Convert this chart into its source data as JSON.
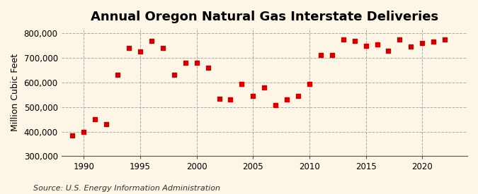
{
  "title": "Annual Oregon Natural Gas Interstate Deliveries",
  "ylabel": "Million Cubic Feet",
  "source": "Source: U.S. Energy Information Administration",
  "background_color": "#fdf5e6",
  "marker_color": "#cc0000",
  "grid_color": "#aaaaaa",
  "years": [
    1989,
    1990,
    1991,
    1992,
    1993,
    1994,
    1995,
    1996,
    1997,
    1998,
    1999,
    2000,
    2001,
    2002,
    2003,
    2004,
    2005,
    2006,
    2007,
    2008,
    2009,
    2010,
    2011,
    2012,
    2013,
    2014,
    2015,
    2016,
    2017,
    2018,
    2019,
    2020,
    2021,
    2022
  ],
  "values": [
    385000,
    400000,
    450000,
    430000,
    630000,
    740000,
    725000,
    770000,
    740000,
    630000,
    680000,
    680000,
    660000,
    535000,
    530000,
    595000,
    545000,
    580000,
    507000,
    530000,
    545000,
    595000,
    710000,
    710000,
    775000,
    770000,
    750000,
    755000,
    730000,
    775000,
    745000,
    760000,
    765000,
    775000
  ],
  "xlim": [
    1988,
    2024
  ],
  "ylim": [
    300000,
    820000
  ],
  "yticks": [
    300000,
    400000,
    500000,
    600000,
    700000,
    800000
  ],
  "xticks": [
    1990,
    1995,
    2000,
    2005,
    2010,
    2015,
    2020
  ],
  "title_fontsize": 13,
  "label_fontsize": 9,
  "tick_fontsize": 8.5,
  "source_fontsize": 8
}
